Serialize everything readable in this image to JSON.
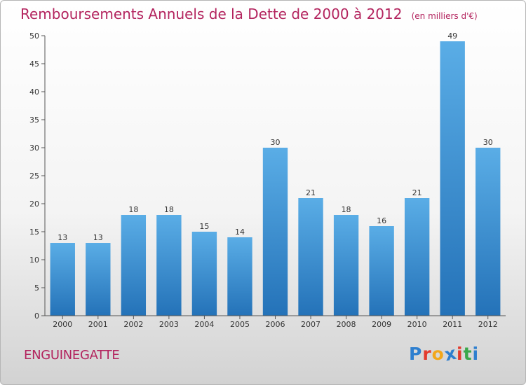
{
  "header": {
    "title": "Remboursements Annuels de la Dette de 2000 à 2012",
    "unit": "(en milliers d'€)"
  },
  "commune": "ENGUINEGATTE",
  "logo": {
    "text": "Proxiti",
    "letters": [
      {
        "char": "P",
        "color": "#2e7fcf"
      },
      {
        "char": "r",
        "color": "#e33b2e"
      },
      {
        "char": "o",
        "color": "#f2a71b"
      },
      {
        "char": "x",
        "color": "#2e7fcf"
      },
      {
        "char": "i",
        "color": "#e33b2e"
      },
      {
        "char": "t",
        "color": "#3aa84a"
      },
      {
        "char": "i",
        "color": "#2e7fcf"
      }
    ]
  },
  "chart_data": {
    "type": "bar",
    "title": "Remboursements Annuels de la Dette de 2000 à 2012",
    "subtitle": "(en milliers d'€)",
    "categories": [
      "2000",
      "2001",
      "2002",
      "2003",
      "2004",
      "2005",
      "2006",
      "2007",
      "2008",
      "2009",
      "2010",
      "2011",
      "2012"
    ],
    "values": [
      13,
      13,
      18,
      18,
      15,
      14,
      30,
      21,
      18,
      16,
      21,
      49,
      30
    ],
    "data_labels": [
      "13",
      "13",
      "18",
      "18",
      "15",
      "14",
      "30",
      "21",
      "18",
      "16",
      "21",
      "49",
      "30"
    ],
    "ylim": [
      0,
      50
    ],
    "yticks": [
      0,
      5,
      10,
      15,
      20,
      25,
      30,
      35,
      40,
      45,
      50
    ],
    "grid": false,
    "legend": "none",
    "bar_color_top": "#5aade6",
    "bar_color_bottom": "#2472b8",
    "title_color": "#b3245e"
  }
}
